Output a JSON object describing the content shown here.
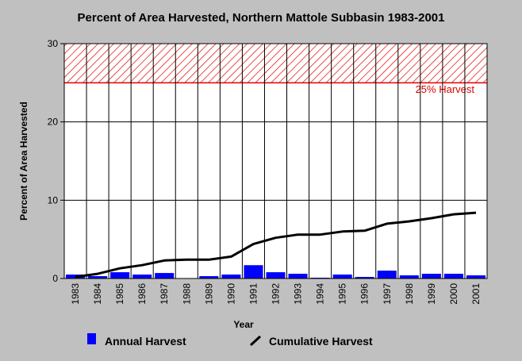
{
  "chart_data": {
    "type": "bar",
    "title": "Percent of Area Harvested, Northern Mattole Subbasin 1983-2001",
    "xlabel": "Year",
    "ylabel": "Percent of Area Harvested",
    "ylim": [
      0,
      30
    ],
    "yticks": [
      0,
      10,
      20,
      30
    ],
    "grid": true,
    "categories": [
      "1983",
      "1984",
      "1985",
      "1986",
      "1987",
      "1988",
      "1989",
      "1990",
      "1991",
      "1992",
      "1993",
      "1994",
      "1995",
      "1996",
      "1997",
      "1998",
      "1999",
      "2000",
      "2001"
    ],
    "series": [
      {
        "name": "Annual Harvest",
        "kind": "bar",
        "color": "#0000ff",
        "values": [
          0.5,
          0.3,
          0.8,
          0.5,
          0.7,
          0.0,
          0.3,
          0.5,
          1.7,
          0.8,
          0.6,
          0.1,
          0.5,
          0.2,
          1.0,
          0.4,
          0.6,
          0.6,
          0.4
        ]
      },
      {
        "name": "Cumulative Harvest",
        "kind": "line",
        "color": "#000000",
        "values": [
          0.2,
          0.6,
          1.3,
          1.7,
          2.3,
          2.4,
          2.4,
          2.8,
          4.4,
          5.2,
          5.6,
          5.6,
          6.0,
          6.1,
          7.0,
          7.3,
          7.7,
          8.2,
          8.4
        ]
      }
    ],
    "threshold_band": {
      "from": 25,
      "to": 30,
      "label": "25% Harvest",
      "color": "#e00000"
    },
    "legend": "bottom"
  }
}
